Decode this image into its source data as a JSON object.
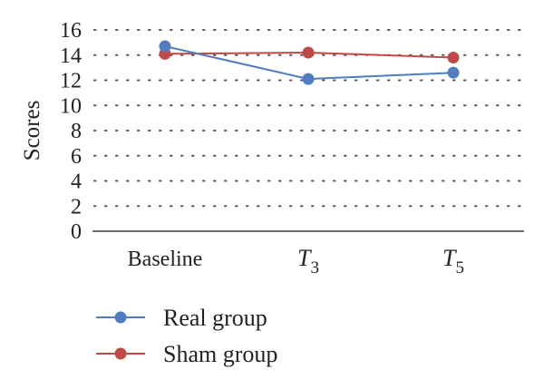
{
  "chart_data": {
    "type": "line",
    "title": "",
    "xlabel": "",
    "ylabel": "Scores",
    "categories": [
      {
        "base": "Baseline",
        "sub": ""
      },
      {
        "base": "T",
        "sub": "3"
      },
      {
        "base": "T",
        "sub": "5"
      }
    ],
    "ylim": [
      0,
      16
    ],
    "yticks": [
      0,
      2,
      4,
      6,
      8,
      10,
      12,
      14,
      16
    ],
    "grid": true,
    "grid_style": "dotted",
    "legend_position": "bottom",
    "series": [
      {
        "name": "Real group",
        "color": "#4f7dc0",
        "values": [
          14.7,
          12.1,
          12.6
        ]
      },
      {
        "name": "Sham group",
        "color": "#be4b48",
        "values": [
          14.1,
          14.2,
          13.8
        ]
      }
    ]
  }
}
